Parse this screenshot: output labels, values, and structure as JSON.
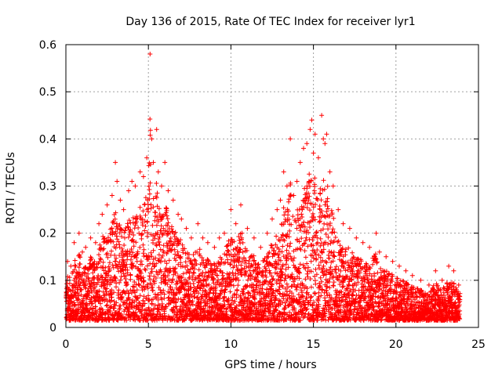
{
  "chart_data": {
    "type": "scatter",
    "title": "Day 136 of 2015, Rate Of TEC Index for receiver lyr1",
    "xlabel": "GPS time / hours",
    "ylabel": "ROTI / TECUs",
    "xlim": [
      0,
      25
    ],
    "ylim": [
      0,
      0.6
    ],
    "xticks": [
      0,
      5,
      10,
      15,
      20,
      25
    ],
    "xtick_labels": [
      "0",
      "5",
      "10",
      "15",
      "20",
      "25"
    ],
    "yticks": [
      0,
      0.1,
      0.2,
      0.3,
      0.4,
      0.5,
      0.6
    ],
    "ytick_labels": [
      "0",
      "0.1",
      "0.2",
      "0.3",
      "0.4",
      "0.5",
      "0.6"
    ],
    "grid": true,
    "marker": "plus",
    "color": "#ff0000",
    "series": [
      {
        "name": "ROTI",
        "x": [
          0.1,
          0.3,
          0.5,
          0.8,
          1.0,
          1.2,
          1.5,
          1.8,
          2.0,
          2.2,
          2.5,
          2.8,
          3.0,
          3.1,
          3.3,
          3.5,
          3.8,
          4.0,
          4.2,
          4.5,
          4.7,
          4.9,
          5.1,
          5.2,
          5.3,
          5.5,
          5.6,
          5.8,
          6.0,
          6.2,
          6.5,
          6.8,
          7.0,
          7.3,
          7.6,
          8.0,
          8.3,
          8.6,
          9.0,
          9.3,
          9.6,
          10.0,
          10.3,
          10.6,
          11.0,
          11.4,
          11.8,
          12.2,
          12.5,
          12.8,
          13.0,
          13.2,
          13.4,
          13.6,
          13.8,
          14.0,
          14.2,
          14.4,
          14.6,
          14.8,
          14.9,
          15.0,
          15.1,
          15.3,
          15.5,
          15.6,
          15.7,
          15.8,
          16.0,
          16.2,
          16.5,
          16.8,
          17.2,
          17.6,
          18.0,
          18.4,
          18.8,
          19.0,
          19.4,
          19.8,
          20.2,
          20.6,
          21.0,
          21.5,
          22.0,
          22.4,
          22.8,
          23.2,
          23.5,
          23.8
        ],
        "y": [
          0.14,
          0.13,
          0.18,
          0.2,
          0.16,
          0.17,
          0.19,
          0.18,
          0.22,
          0.24,
          0.26,
          0.28,
          0.35,
          0.31,
          0.27,
          0.25,
          0.29,
          0.31,
          0.3,
          0.33,
          0.32,
          0.36,
          0.58,
          0.4,
          0.35,
          0.42,
          0.33,
          0.3,
          0.35,
          0.29,
          0.27,
          0.24,
          0.23,
          0.21,
          0.19,
          0.22,
          0.19,
          0.18,
          0.17,
          0.19,
          0.2,
          0.25,
          0.22,
          0.26,
          0.21,
          0.19,
          0.17,
          0.2,
          0.23,
          0.25,
          0.27,
          0.33,
          0.3,
          0.4,
          0.28,
          0.31,
          0.35,
          0.38,
          0.39,
          0.42,
          0.44,
          0.37,
          0.41,
          0.36,
          0.45,
          0.4,
          0.39,
          0.41,
          0.33,
          0.3,
          0.25,
          0.22,
          0.21,
          0.19,
          0.18,
          0.17,
          0.2,
          0.16,
          0.15,
          0.14,
          0.13,
          0.12,
          0.11,
          0.1,
          0.09,
          0.12,
          0.1,
          0.13,
          0.12,
          0.09
        ],
        "envelope_note": "dense scatter; values read as approximate upper envelope, remaining points distributed below",
        "baseline_y": 0.015
      }
    ]
  }
}
